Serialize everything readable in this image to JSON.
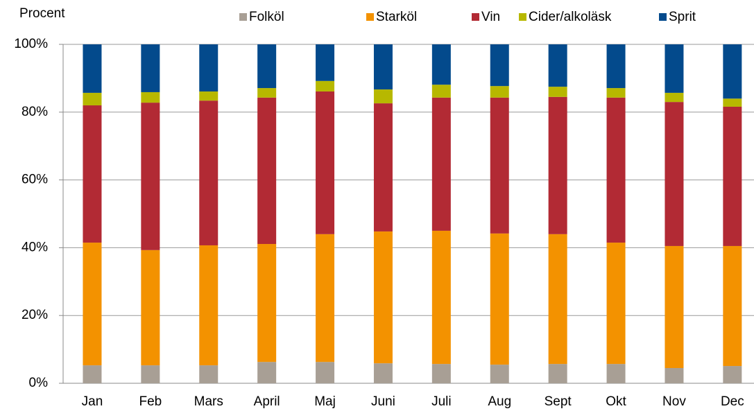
{
  "chart_data": {
    "type": "stacked_bar",
    "y_label": "Procent",
    "categories": [
      "Jan",
      "Feb",
      "Mars",
      "April",
      "Maj",
      "Juni",
      "Juli",
      "Aug",
      "Sept",
      "Okt",
      "Nov",
      "Dec"
    ],
    "series": [
      {
        "name": "Folköl",
        "color": "#a89f95",
        "values": [
          5.3,
          5.3,
          5.3,
          6.3,
          6.3,
          5.9,
          5.7,
          5.5,
          5.7,
          5.7,
          4.5,
          5.1
        ]
      },
      {
        "name": "Starköl",
        "color": "#f39200",
        "values": [
          36.2,
          34.0,
          35.4,
          34.8,
          37.7,
          38.9,
          39.3,
          38.7,
          38.3,
          35.8,
          36.0,
          35.4
        ]
      },
      {
        "name": "Vin",
        "color": "#b22a34",
        "values": [
          40.5,
          43.5,
          42.7,
          43.2,
          42.1,
          37.8,
          39.3,
          40.1,
          40.5,
          42.8,
          42.5,
          41.1
        ]
      },
      {
        "name": "Cider/alkoläsk",
        "color": "#b7b800",
        "values": [
          3.7,
          3.1,
          2.7,
          2.8,
          3.1,
          4.1,
          3.8,
          3.4,
          3.0,
          2.8,
          2.7,
          2.4
        ]
      },
      {
        "name": "Sprit",
        "color": "#034a8c",
        "values": [
          14.3,
          14.1,
          13.9,
          12.9,
          10.8,
          13.3,
          11.9,
          12.3,
          12.5,
          12.9,
          14.3,
          16.0
        ]
      }
    ],
    "ylim": [
      0,
      100
    ],
    "yticks": [
      {
        "value": 0,
        "label": "0%"
      },
      {
        "value": 20,
        "label": "20%"
      },
      {
        "value": 40,
        "label": "40%"
      },
      {
        "value": 60,
        "label": "60%"
      },
      {
        "value": 80,
        "label": "80%"
      },
      {
        "value": 100,
        "label": "100%"
      }
    ],
    "grid": true
  }
}
